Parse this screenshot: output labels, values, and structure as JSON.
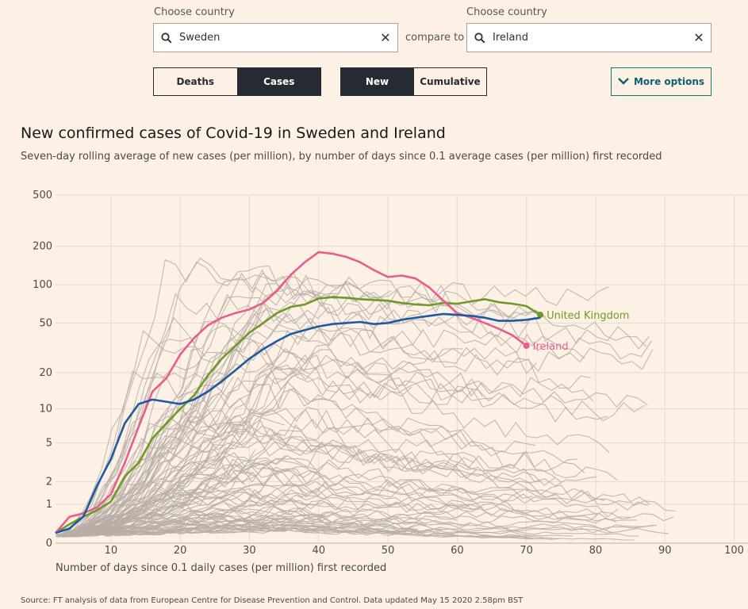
{
  "controls": {
    "country1_label": "Choose country",
    "country1_value": "Sweden",
    "compare_label": "compare to",
    "country2_label": "Choose country",
    "country2_value": "Ireland",
    "clear_glyph": "✕",
    "metric_options": [
      "Deaths",
      "Cases"
    ],
    "metric_selected": "Cases",
    "mode_options": [
      "New",
      "Cumulative"
    ],
    "mode_selected": "New",
    "more_options_label": "More options"
  },
  "icons": {
    "search": "search-icon",
    "clear": "close-icon",
    "more": "chevron-down-icon"
  },
  "chart_data": {
    "type": "line",
    "title": "New confirmed cases of Covid-19 in Sweden and Ireland",
    "subtitle": "Seven-day rolling average of new cases (per million), by number of days since 0.1 average cases (per million) first recorded",
    "xlabel": "Number of days since 0.1 daily cases (per million) first recorded",
    "ylabel": "",
    "xlim": [
      2,
      102
    ],
    "ylim": [
      0,
      500
    ],
    "yscale": "symlog",
    "xticks": [
      10,
      20,
      30,
      40,
      50,
      60,
      70,
      80,
      90,
      100
    ],
    "ytick_labels": [
      "0",
      "1",
      "2",
      "5",
      "10",
      "20",
      "50",
      "100",
      "200",
      "500"
    ],
    "grid": true,
    "background_series_color": "#b7aea7",
    "background_series_note": "grey lines show other countries",
    "series": [
      {
        "name": "United Kingdom",
        "color": "#6f9a26",
        "labeled": true,
        "x": [
          2,
          4,
          6,
          8,
          10,
          12,
          14,
          16,
          18,
          20,
          22,
          24,
          26,
          28,
          30,
          32,
          34,
          36,
          38,
          40,
          42,
          44,
          46,
          48,
          50,
          52,
          54,
          56,
          58,
          60,
          62,
          64,
          66,
          68,
          70,
          72
        ],
        "y": [
          0.2,
          0.4,
          0.6,
          0.8,
          1.1,
          2.3,
          3.2,
          5.5,
          7.5,
          10,
          13,
          19,
          26,
          33,
          42,
          50,
          60,
          67,
          70,
          78,
          80,
          79,
          77,
          76,
          75,
          72,
          70,
          69,
          72,
          71,
          74,
          77,
          73,
          71,
          68,
          58
        ]
      },
      {
        "name": "Ireland",
        "color": "#e85d8c",
        "labeled": true,
        "x": [
          2,
          4,
          6,
          8,
          10,
          12,
          14,
          16,
          18,
          20,
          22,
          24,
          26,
          28,
          30,
          32,
          34,
          36,
          38,
          40,
          42,
          44,
          46,
          48,
          50,
          52,
          54,
          56,
          58,
          60,
          62,
          64,
          66,
          68,
          70
        ],
        "y": [
          0.2,
          0.6,
          0.7,
          0.9,
          1.4,
          3.2,
          7,
          14,
          18,
          28,
          38,
          48,
          55,
          60,
          64,
          72,
          90,
          120,
          150,
          180,
          175,
          165,
          150,
          130,
          115,
          118,
          112,
          95,
          75,
          60,
          55,
          50,
          45,
          40,
          33
        ]
      },
      {
        "name": "Sweden",
        "color": "#1e5aa0",
        "labeled": false,
        "x": [
          2,
          4,
          6,
          8,
          10,
          12,
          14,
          16,
          18,
          20,
          22,
          24,
          26,
          28,
          30,
          32,
          34,
          36,
          38,
          40,
          42,
          44,
          46,
          48,
          50,
          52,
          54,
          56,
          58,
          60,
          62,
          64,
          66,
          68,
          70,
          72
        ],
        "y": [
          0.2,
          0.3,
          0.6,
          1.8,
          3.5,
          7.5,
          11,
          12,
          11.5,
          11,
          12,
          14,
          17,
          21,
          26,
          31,
          36,
          41,
          44,
          47,
          49,
          50,
          51,
          49,
          50,
          53,
          55,
          57,
          59,
          58,
          57,
          55,
          52,
          52,
          53,
          55
        ]
      }
    ]
  },
  "source_text": "Source: FT analysis of data from European Centre for Disease Prevention and Control. Data updated May 15 2020 2.58pm BST"
}
